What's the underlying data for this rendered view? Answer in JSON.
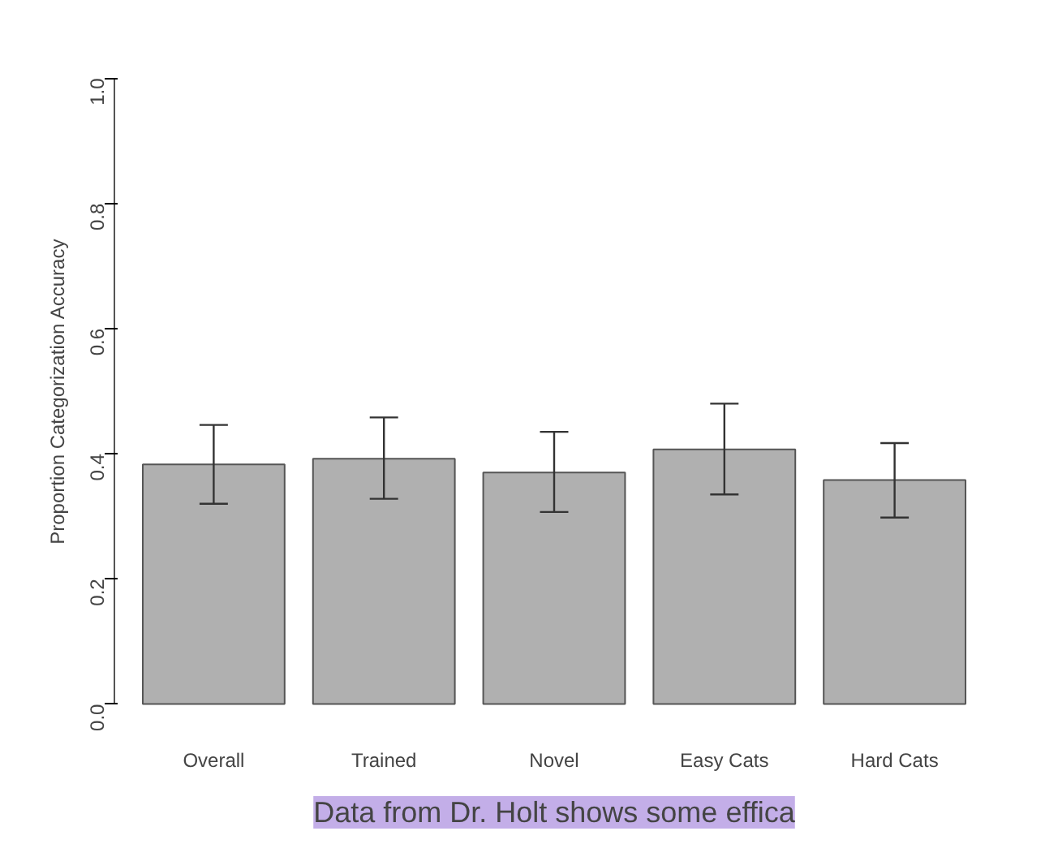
{
  "chart_data": {
    "type": "bar",
    "ylabel": "Proportion Categorization Accuracy",
    "categories": [
      "Overall",
      "Trained",
      "Novel",
      "Easy Cats",
      "Hard Cats"
    ],
    "values": [
      0.383,
      0.392,
      0.37,
      0.407,
      0.358
    ],
    "errors": [
      [
        0.32,
        0.446
      ],
      [
        0.328,
        0.458
      ],
      [
        0.307,
        0.435
      ],
      [
        0.335,
        0.48
      ],
      [
        0.298,
        0.417
      ]
    ],
    "color": "#b0b0b0",
    "ylim": [
      0,
      1
    ],
    "yticks": [
      {
        "value": 0,
        "label": "0.0"
      },
      {
        "value": 0.2,
        "label": "0.2"
      },
      {
        "value": 0.4,
        "label": "0.4"
      },
      {
        "value": 0.6,
        "label": "0.6"
      },
      {
        "value": 0.8,
        "label": "0.8"
      },
      {
        "value": 1,
        "label": "1.0"
      }
    ],
    "grid": false,
    "annotations": [
      "Data from Dr. Holt shows some effica"
    ]
  }
}
